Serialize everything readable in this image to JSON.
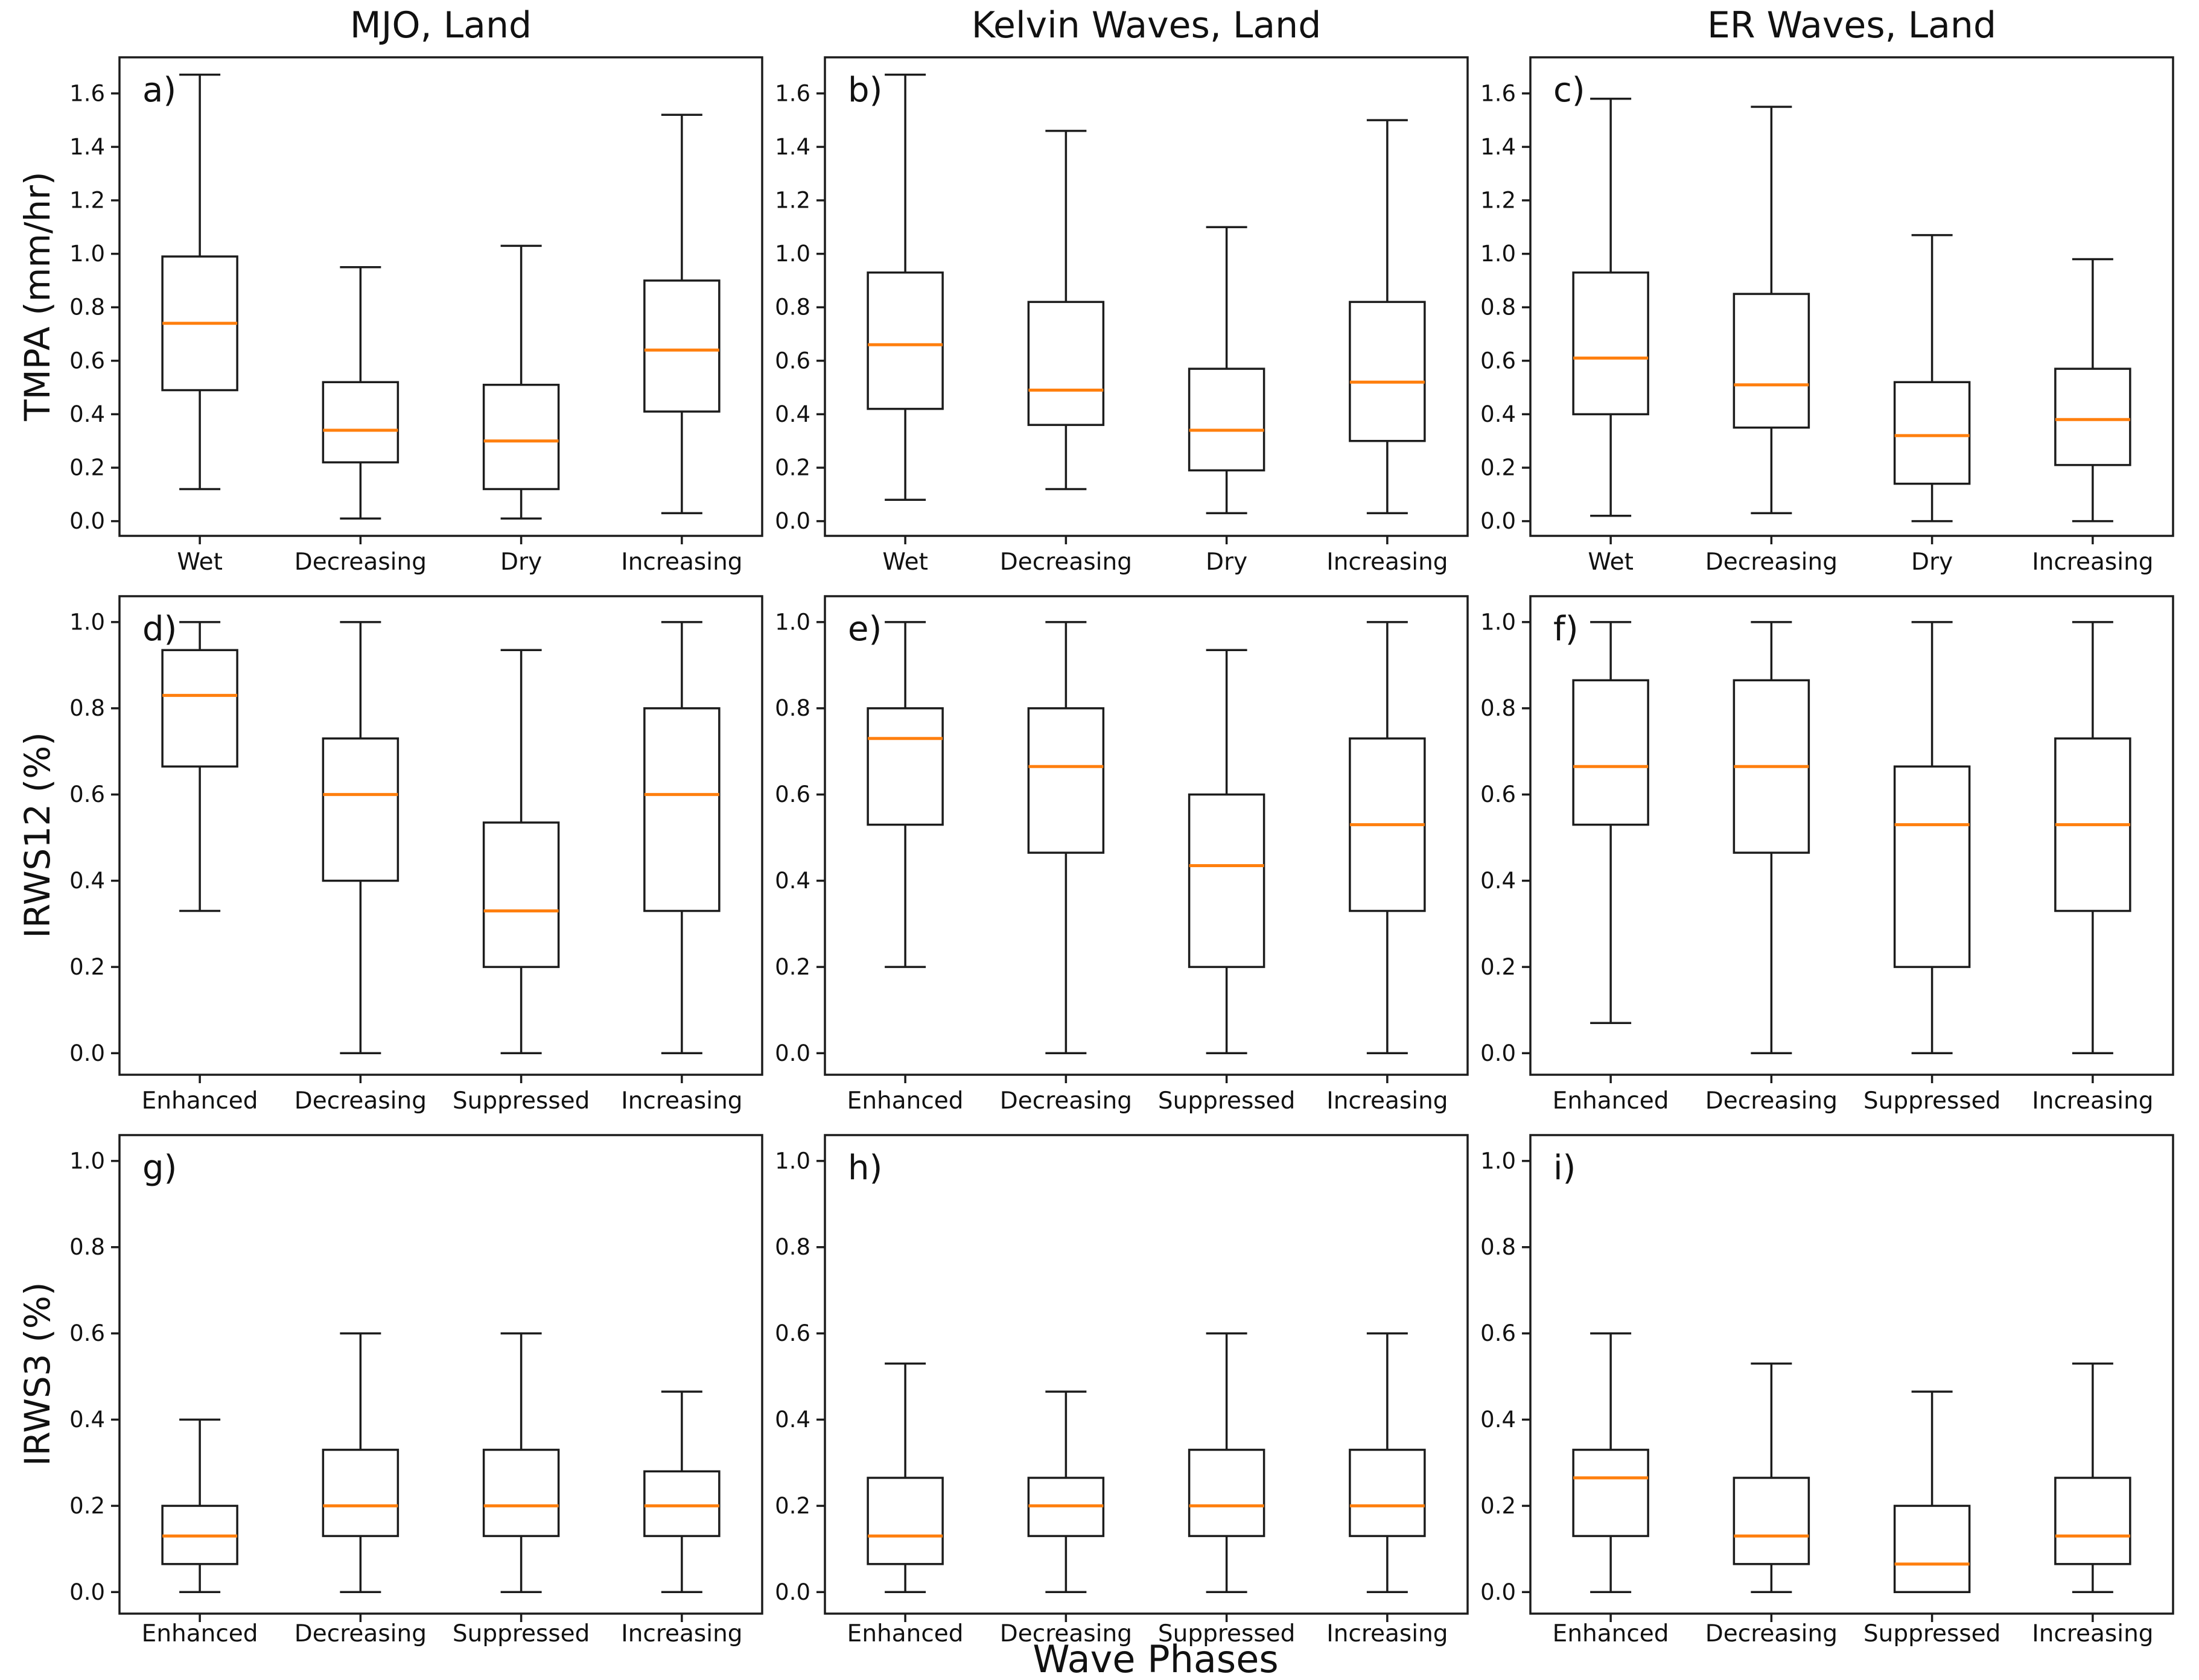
{
  "figure": {
    "xlabel": "Wave Phases",
    "colors": {
      "median": "#ff7f0e",
      "line": "#1c1c1c",
      "background": "#ffffff"
    }
  },
  "chart_data": [
    {
      "type": "boxplot",
      "id": "a",
      "letter": "a)",
      "title": "MJO, Land",
      "ylabel": "TMPA (mm/hr)",
      "categories": [
        "Wet",
        "Decreasing",
        "Dry",
        "Increasing"
      ],
      "ylim": [
        -0.055,
        1.735
      ],
      "yticks": [
        0.0,
        0.2,
        0.4,
        0.6,
        0.8,
        1.0,
        1.2,
        1.4,
        1.6
      ],
      "boxes": [
        {
          "whislo": 0.12,
          "q1": 0.49,
          "med": 0.74,
          "q3": 0.99,
          "whishi": 1.67
        },
        {
          "whislo": 0.01,
          "q1": 0.22,
          "med": 0.34,
          "q3": 0.52,
          "whishi": 0.95
        },
        {
          "whislo": 0.01,
          "q1": 0.12,
          "med": 0.3,
          "q3": 0.51,
          "whishi": 1.03
        },
        {
          "whislo": 0.03,
          "q1": 0.41,
          "med": 0.64,
          "q3": 0.9,
          "whishi": 1.52
        }
      ]
    },
    {
      "type": "boxplot",
      "id": "b",
      "letter": "b)",
      "title": "Kelvin Waves, Land",
      "ylabel": "",
      "categories": [
        "Wet",
        "Decreasing",
        "Dry",
        "Increasing"
      ],
      "ylim": [
        -0.055,
        1.735
      ],
      "yticks": [
        0.0,
        0.2,
        0.4,
        0.6,
        0.8,
        1.0,
        1.2,
        1.4,
        1.6
      ],
      "boxes": [
        {
          "whislo": 0.08,
          "q1": 0.42,
          "med": 0.66,
          "q3": 0.93,
          "whishi": 1.67
        },
        {
          "whislo": 0.12,
          "q1": 0.36,
          "med": 0.49,
          "q3": 0.82,
          "whishi": 1.46
        },
        {
          "whislo": 0.03,
          "q1": 0.19,
          "med": 0.34,
          "q3": 0.57,
          "whishi": 1.1
        },
        {
          "whislo": 0.03,
          "q1": 0.3,
          "med": 0.52,
          "q3": 0.82,
          "whishi": 1.5
        }
      ]
    },
    {
      "type": "boxplot",
      "id": "c",
      "letter": "c)",
      "title": "ER Waves, Land",
      "ylabel": "",
      "categories": [
        "Wet",
        "Decreasing",
        "Dry",
        "Increasing"
      ],
      "ylim": [
        -0.055,
        1.735
      ],
      "yticks": [
        0.0,
        0.2,
        0.4,
        0.6,
        0.8,
        1.0,
        1.2,
        1.4,
        1.6
      ],
      "boxes": [
        {
          "whislo": 0.02,
          "q1": 0.4,
          "med": 0.61,
          "q3": 0.93,
          "whishi": 1.58
        },
        {
          "whislo": 0.03,
          "q1": 0.35,
          "med": 0.51,
          "q3": 0.85,
          "whishi": 1.55
        },
        {
          "whislo": 0.0,
          "q1": 0.14,
          "med": 0.32,
          "q3": 0.52,
          "whishi": 1.07
        },
        {
          "whislo": 0.0,
          "q1": 0.21,
          "med": 0.38,
          "q3": 0.57,
          "whishi": 0.98
        }
      ]
    },
    {
      "type": "boxplot",
      "id": "d",
      "letter": "d)",
      "title": "",
      "ylabel": "IRWS12 (%)",
      "categories": [
        "Enhanced",
        "Decreasing",
        "Suppressed",
        "Increasing"
      ],
      "ylim": [
        -0.05,
        1.06
      ],
      "yticks": [
        0.0,
        0.2,
        0.4,
        0.6,
        0.8,
        1.0
      ],
      "boxes": [
        {
          "whislo": 0.33,
          "q1": 0.665,
          "med": 0.83,
          "q3": 0.935,
          "whishi": 1.0
        },
        {
          "whislo": 0.0,
          "q1": 0.4,
          "med": 0.6,
          "q3": 0.73,
          "whishi": 1.0
        },
        {
          "whislo": 0.0,
          "q1": 0.2,
          "med": 0.33,
          "q3": 0.535,
          "whishi": 0.935
        },
        {
          "whislo": 0.0,
          "q1": 0.33,
          "med": 0.6,
          "q3": 0.8,
          "whishi": 1.0
        }
      ]
    },
    {
      "type": "boxplot",
      "id": "e",
      "letter": "e)",
      "title": "",
      "ylabel": "",
      "categories": [
        "Enhanced",
        "Decreasing",
        "Suppressed",
        "Increasing"
      ],
      "ylim": [
        -0.05,
        1.06
      ],
      "yticks": [
        0.0,
        0.2,
        0.4,
        0.6,
        0.8,
        1.0
      ],
      "boxes": [
        {
          "whislo": 0.2,
          "q1": 0.53,
          "med": 0.73,
          "q3": 0.8,
          "whishi": 1.0
        },
        {
          "whislo": 0.0,
          "q1": 0.465,
          "med": 0.665,
          "q3": 0.8,
          "whishi": 1.0
        },
        {
          "whislo": 0.0,
          "q1": 0.2,
          "med": 0.435,
          "q3": 0.6,
          "whishi": 0.935
        },
        {
          "whislo": 0.0,
          "q1": 0.33,
          "med": 0.53,
          "q3": 0.73,
          "whishi": 1.0
        }
      ]
    },
    {
      "type": "boxplot",
      "id": "f",
      "letter": "f)",
      "title": "",
      "ylabel": "",
      "categories": [
        "Enhanced",
        "Decreasing",
        "Suppressed",
        "Increasing"
      ],
      "ylim": [
        -0.05,
        1.06
      ],
      "yticks": [
        0.0,
        0.2,
        0.4,
        0.6,
        0.8,
        1.0
      ],
      "boxes": [
        {
          "whislo": 0.07,
          "q1": 0.53,
          "med": 0.665,
          "q3": 0.865,
          "whishi": 1.0
        },
        {
          "whislo": 0.0,
          "q1": 0.465,
          "med": 0.665,
          "q3": 0.865,
          "whishi": 1.0
        },
        {
          "whislo": 0.0,
          "q1": 0.2,
          "med": 0.53,
          "q3": 0.665,
          "whishi": 1.0
        },
        {
          "whislo": 0.0,
          "q1": 0.33,
          "med": 0.53,
          "q3": 0.73,
          "whishi": 1.0
        }
      ]
    },
    {
      "type": "boxplot",
      "id": "g",
      "letter": "g)",
      "title": "",
      "ylabel": "IRWS3 (%)",
      "categories": [
        "Enhanced",
        "Decreasing",
        "Suppressed",
        "Increasing"
      ],
      "ylim": [
        -0.05,
        1.06
      ],
      "yticks": [
        0.0,
        0.2,
        0.4,
        0.6,
        0.8,
        1.0
      ],
      "boxes": [
        {
          "whislo": 0.0,
          "q1": 0.065,
          "med": 0.13,
          "q3": 0.2,
          "whishi": 0.4
        },
        {
          "whislo": 0.0,
          "q1": 0.13,
          "med": 0.2,
          "q3": 0.33,
          "whishi": 0.6
        },
        {
          "whislo": 0.0,
          "q1": 0.13,
          "med": 0.2,
          "q3": 0.33,
          "whishi": 0.6
        },
        {
          "whislo": 0.0,
          "q1": 0.13,
          "med": 0.2,
          "q3": 0.28,
          "whishi": 0.465
        }
      ]
    },
    {
      "type": "boxplot",
      "id": "h",
      "letter": "h)",
      "title": "",
      "ylabel": "",
      "categories": [
        "Enhanced",
        "Decreasing",
        "Suppressed",
        "Increasing"
      ],
      "ylim": [
        -0.05,
        1.06
      ],
      "yticks": [
        0.0,
        0.2,
        0.4,
        0.6,
        0.8,
        1.0
      ],
      "boxes": [
        {
          "whislo": 0.0,
          "q1": 0.065,
          "med": 0.13,
          "q3": 0.265,
          "whishi": 0.53
        },
        {
          "whislo": 0.0,
          "q1": 0.13,
          "med": 0.2,
          "q3": 0.265,
          "whishi": 0.465
        },
        {
          "whislo": 0.0,
          "q1": 0.13,
          "med": 0.2,
          "q3": 0.33,
          "whishi": 0.6
        },
        {
          "whislo": 0.0,
          "q1": 0.13,
          "med": 0.2,
          "q3": 0.33,
          "whishi": 0.6
        }
      ]
    },
    {
      "type": "boxplot",
      "id": "i",
      "letter": "i)",
      "title": "",
      "ylabel": "",
      "categories": [
        "Enhanced",
        "Decreasing",
        "Suppressed",
        "Increasing"
      ],
      "ylim": [
        -0.05,
        1.06
      ],
      "yticks": [
        0.0,
        0.2,
        0.4,
        0.6,
        0.8,
        1.0
      ],
      "boxes": [
        {
          "whislo": 0.0,
          "q1": 0.13,
          "med": 0.265,
          "q3": 0.33,
          "whishi": 0.6
        },
        {
          "whislo": 0.0,
          "q1": 0.065,
          "med": 0.13,
          "q3": 0.265,
          "whishi": 0.53
        },
        {
          "whislo": 0.0,
          "q1": 0.0,
          "med": 0.065,
          "q3": 0.2,
          "whishi": 0.465
        },
        {
          "whislo": 0.0,
          "q1": 0.065,
          "med": 0.13,
          "q3": 0.265,
          "whishi": 0.53
        }
      ]
    }
  ]
}
